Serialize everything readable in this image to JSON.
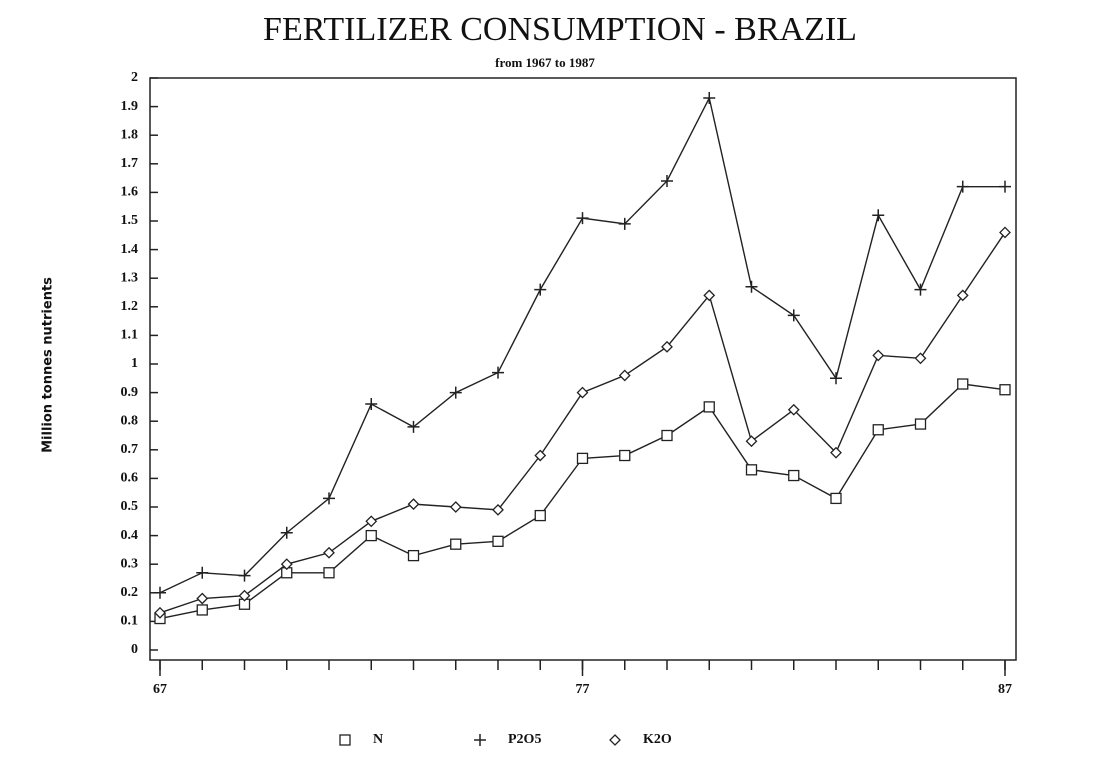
{
  "chart_data": {
    "type": "line",
    "title": "FERTILIZER CONSUMPTION  -  BRAZIL",
    "subtitle": "from 1967 to 1987",
    "y_label": "Million tonnes nutrients",
    "x": [
      67,
      68,
      69,
      70,
      71,
      72,
      73,
      74,
      75,
      76,
      77,
      78,
      79,
      80,
      81,
      82,
      83,
      84,
      85,
      86,
      87
    ],
    "xlim": [
      67,
      87
    ],
    "xticks": [
      67,
      77,
      87
    ],
    "ylim": [
      0,
      2
    ],
    "yticks": [
      0,
      0.1,
      0.2,
      0.3,
      0.4,
      0.5,
      0.6,
      0.7,
      0.8,
      0.9,
      1,
      1.1,
      1.2,
      1.3,
      1.4,
      1.5,
      1.6,
      1.7,
      1.8,
      1.9,
      2
    ],
    "grid": false,
    "legend": "bottom",
    "series": [
      {
        "name": "N",
        "color": "#222222",
        "marker": "square",
        "values": [
          0.11,
          0.14,
          0.16,
          0.27,
          0.27,
          0.4,
          0.33,
          0.37,
          0.38,
          0.47,
          0.67,
          0.68,
          0.75,
          0.85,
          0.63,
          0.61,
          0.53,
          0.77,
          0.79,
          0.93,
          0.91
        ]
      },
      {
        "name": "P2O5",
        "color": "#222222",
        "marker": "plus",
        "values": [
          0.2,
          0.27,
          0.26,
          0.41,
          0.53,
          0.86,
          0.78,
          0.9,
          0.97,
          1.26,
          1.51,
          1.49,
          1.64,
          1.93,
          1.27,
          1.17,
          0.95,
          1.52,
          1.26,
          1.62,
          1.62
        ]
      },
      {
        "name": "K2O",
        "color": "#222222",
        "marker": "diamond",
        "values": [
          0.13,
          0.18,
          0.19,
          0.3,
          0.34,
          0.45,
          0.51,
          0.5,
          0.49,
          0.68,
          0.9,
          0.96,
          1.06,
          1.24,
          0.73,
          0.84,
          0.69,
          1.03,
          1.02,
          1.24,
          1.46
        ]
      }
    ]
  }
}
